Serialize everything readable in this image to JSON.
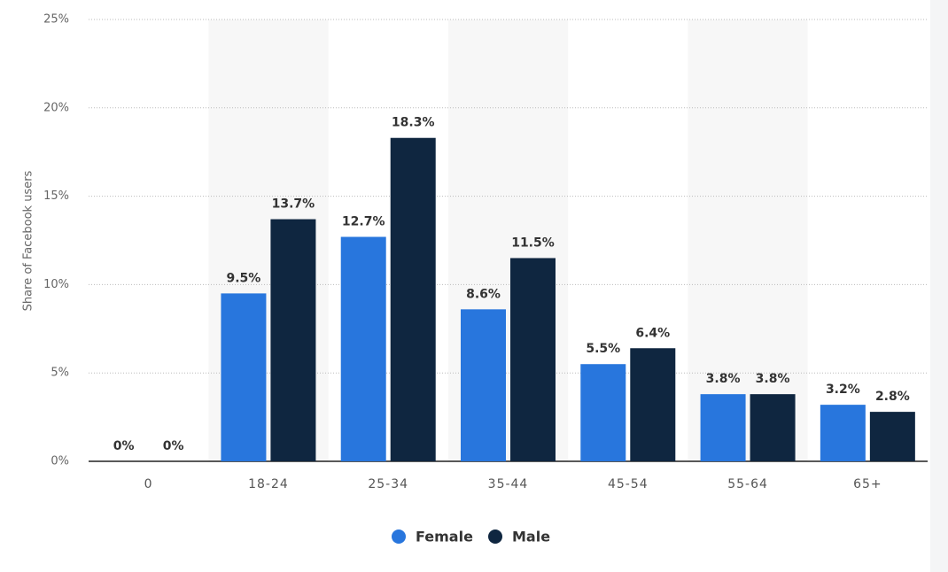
{
  "chart_data": {
    "type": "bar",
    "y_label": "Share of Facebook users",
    "categories": [
      "0",
      "18-24",
      "25-34",
      "35-44",
      "45-54",
      "55-64",
      "65+"
    ],
    "series": [
      {
        "name": "Female",
        "color": "#2876dd",
        "values": [
          0,
          9.5,
          12.7,
          8.6,
          5.5,
          3.8,
          3.2
        ],
        "value_labels": [
          "0%",
          "9.5%",
          "12.7%",
          "8.6%",
          "5.5%",
          "3.8%",
          "3.2%"
        ]
      },
      {
        "name": "Male",
        "color": "#0f2640",
        "values": [
          0,
          13.7,
          18.3,
          11.5,
          6.4,
          3.8,
          2.8
        ],
        "value_labels": [
          "0%",
          "13.7%",
          "18.3%",
          "11.5%",
          "6.4%",
          "3.8%",
          "2.8%"
        ]
      }
    ],
    "ylim": [
      0,
      25
    ],
    "yticks": [
      {
        "value": 0,
        "label": "0%"
      },
      {
        "value": 5,
        "label": "5%"
      },
      {
        "value": 10,
        "label": "10%"
      },
      {
        "value": 15,
        "label": "15%"
      },
      {
        "value": 20,
        "label": "20%"
      },
      {
        "value": 25,
        "label": "25%"
      }
    ],
    "grid": true
  }
}
